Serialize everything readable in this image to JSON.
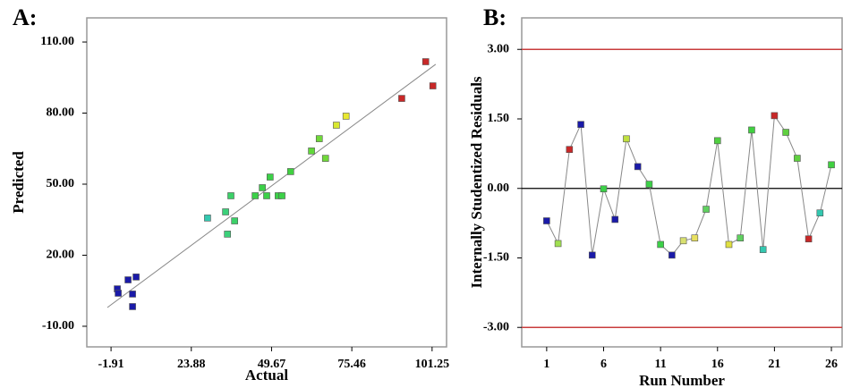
{
  "chart_data": [
    {
      "type": "scatter",
      "title": "A:",
      "x_label": "Actual",
      "y_label": "Predicted",
      "xlim": [
        -9.7,
        105.9
      ],
      "ylim": [
        -18.7,
        120.2
      ],
      "xticks": [
        -1.91,
        23.88,
        49.67,
        75.46,
        101.25
      ],
      "yticks": [
        {
          "value": -10,
          "label": "-10.00"
        },
        {
          "value": 20,
          "label": "20.00"
        },
        {
          "value": 50,
          "label": "50.00"
        },
        {
          "value": 80,
          "label": "80.00"
        },
        {
          "value": 110,
          "label": "110.00"
        }
      ],
      "x": [
        0.1,
        0.39,
        3.55,
        4.99,
        4.99,
        6.14,
        29.1,
        34.9,
        35.5,
        36.6,
        37.8,
        44.4,
        46.7,
        48.1,
        49.2,
        51.8,
        53.0,
        55.8,
        62.5,
        65.0,
        67.0,
        70.5,
        73.6,
        91.5,
        99.2,
        101.5
      ],
      "values": [
        5.8,
        3.96,
        9.6,
        3.6,
        -1.7,
        10.8,
        35.7,
        38.3,
        28.9,
        45.1,
        34.5,
        45.1,
        48.5,
        45.1,
        53.0,
        45.1,
        45.1,
        55.3,
        64.0,
        69.2,
        60.9,
        74.9,
        78.7,
        86.2,
        101.7,
        91.5
      ],
      "colors": [
        "#1a1aa8",
        "#1a1aa8",
        "#1a1aa8",
        "#1a1aa8",
        "#1a1aa8",
        "#1a1aa8",
        "#33c8b0",
        "#3cd07a",
        "#3cd07a",
        "#3cd068",
        "#3cd068",
        "#3cd048",
        "#3cd048",
        "#3cd048",
        "#3cd048",
        "#3cd048",
        "#3cd048",
        "#40d040",
        "#60d83a",
        "#70d83a",
        "#70d83a",
        "#d8e830",
        "#e8e830",
        "#c82828",
        "#c82828",
        "#c82828"
      ],
      "fit_line": {
        "x": [
          -3.1,
          102.4
        ],
        "y": [
          -2.1,
          100.6
        ]
      },
      "line_color": "#888888",
      "frame_color": "#999999"
    },
    {
      "type": "line",
      "title": "B:",
      "x_label": "Run Number",
      "y_label": "Internally Studentized Residuals",
      "xlim": [
        -1.19,
        26.94
      ],
      "ylim": [
        -3.42,
        3.68
      ],
      "xticks": [
        1,
        6,
        11,
        16,
        21,
        26
      ],
      "yticks": [
        {
          "value": -3,
          "label": "-3.00"
        },
        {
          "value": -1.5,
          "label": "-1.50"
        },
        {
          "value": 0,
          "label": "0.00"
        },
        {
          "value": 1.5,
          "label": "1.50"
        },
        {
          "value": 3,
          "label": "3.00"
        }
      ],
      "x": [
        1,
        2,
        3,
        4,
        5,
        6,
        7,
        8,
        9,
        10,
        11,
        12,
        13,
        14,
        15,
        16,
        17,
        18,
        19,
        20,
        21,
        22,
        23,
        24,
        25,
        26
      ],
      "values": [
        -0.7,
        -1.19,
        0.84,
        1.38,
        -1.44,
        -0.01,
        -0.67,
        1.07,
        0.47,
        0.09,
        -1.21,
        -1.44,
        -1.13,
        -1.07,
        -0.45,
        1.03,
        -1.21,
        -1.07,
        1.26,
        -1.32,
        1.57,
        1.21,
        0.65,
        -1.09,
        -0.53,
        0.51
      ],
      "colors": [
        "#1a1aa8",
        "#a0e050",
        "#c82828",
        "#1a1aa8",
        "#1a1aa8",
        "#3cd048",
        "#1a1aa8",
        "#c0e040",
        "#1a1aa8",
        "#3cd048",
        "#3cd048",
        "#1a1aa8",
        "#d8e070",
        "#e8e060",
        "#60d060",
        "#50d040",
        "#e0e040",
        "#60d060",
        "#40d040",
        "#33c8b0",
        "#c82828",
        "#60d040",
        "#60d040",
        "#c82828",
        "#33c8b0",
        "#40d040"
      ],
      "limits": [
        3,
        -3
      ],
      "limit_color": "#c83c3c",
      "baseline": 0,
      "line_color": "#888888",
      "frame_color": "#999999"
    }
  ]
}
